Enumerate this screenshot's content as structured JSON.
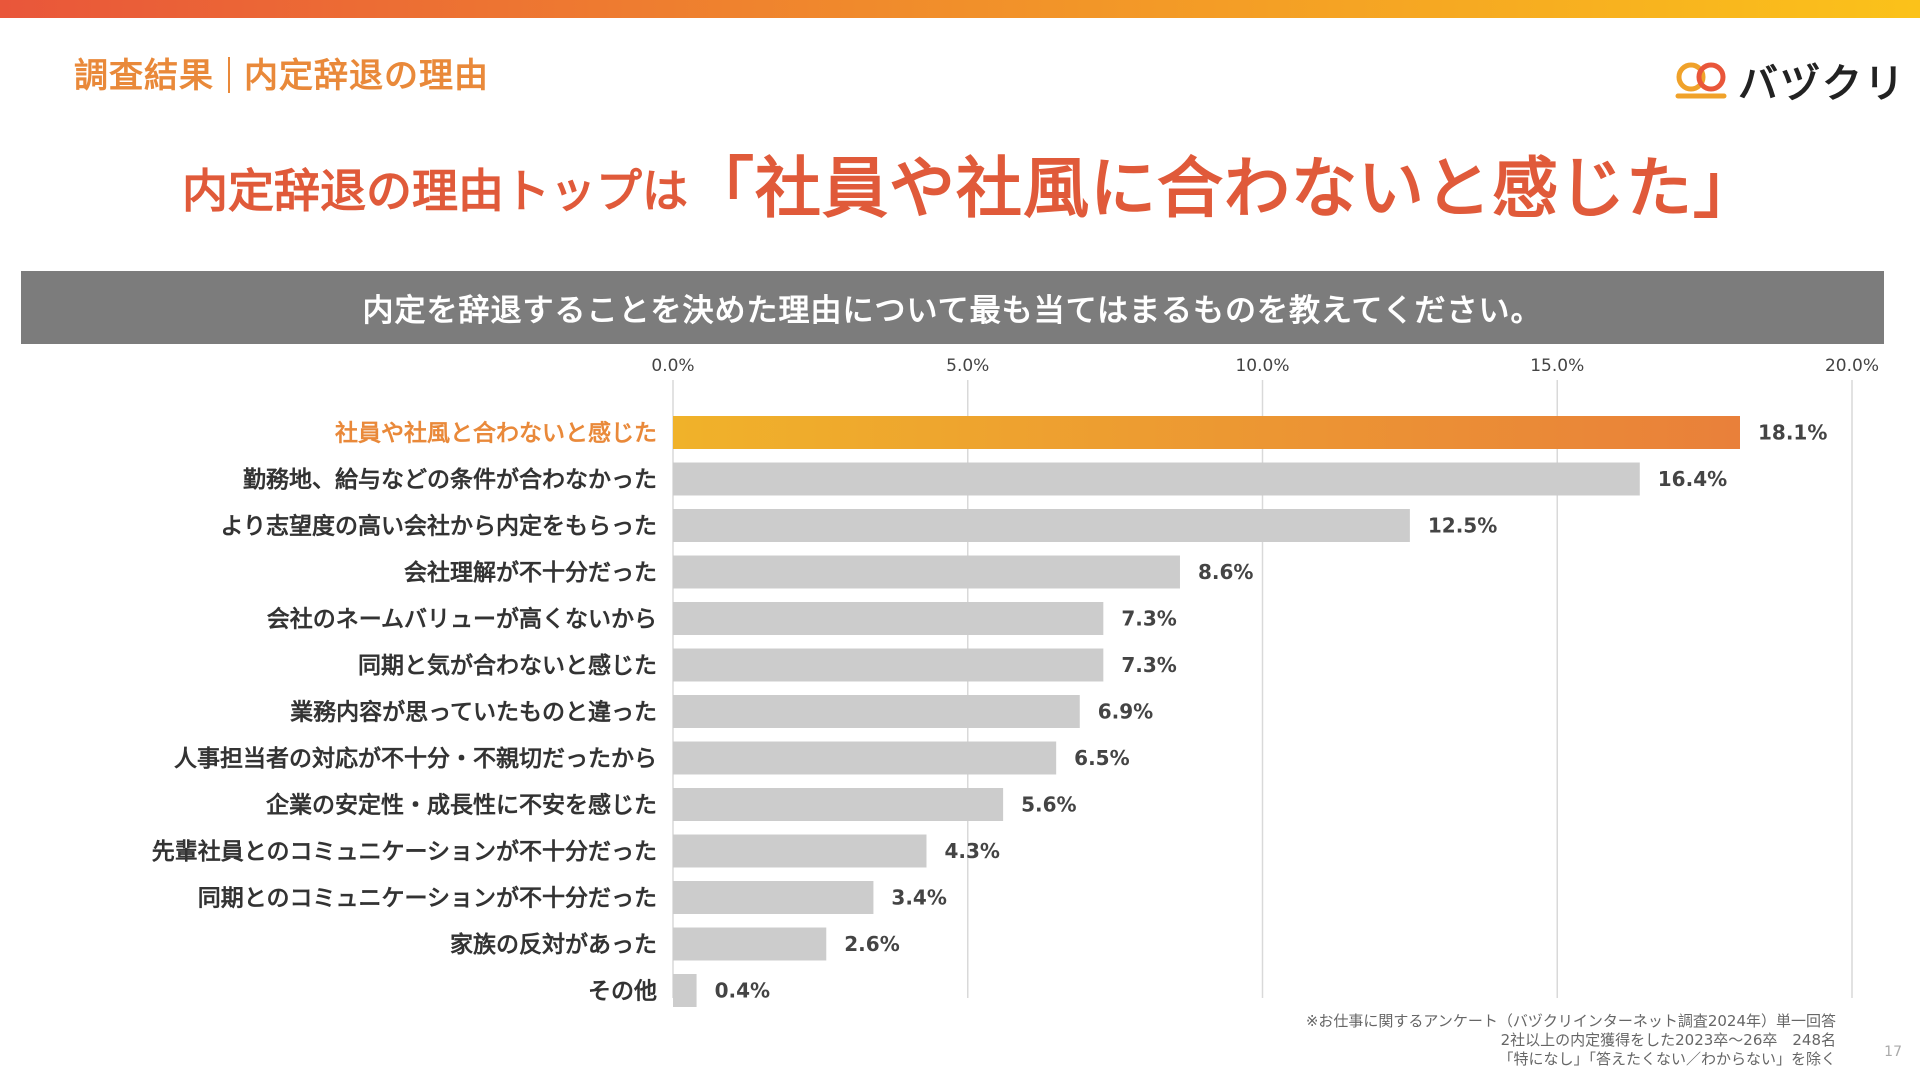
{
  "header": {
    "section_left": "調査結果",
    "section_right": "内定辞退の理由",
    "logo_text": "バヅクリ",
    "logo_icon": "pretzel-logo-icon"
  },
  "headline": {
    "lead": "内定辞退の理由トップは",
    "highlight": "「社員や社風に合わないと感じた」"
  },
  "question": "内定を辞退することを決めた理由について最も当てはまるものを教えてください。",
  "colors": {
    "highlight_start": "#f0b22a",
    "highlight_end": "#e9803a",
    "highlight_label": "#e9893a",
    "bar_gray": "#cccccc",
    "grid": "#d9d9d9",
    "label_text": "#333333"
  },
  "chart_data": {
    "type": "bar",
    "orientation": "horizontal",
    "categories": [
      "社員や社風と合わないと感じた",
      "勤務地、給与などの条件が合わなかった",
      "より志望度の高い会社から内定をもらった",
      "会社理解が不十分だった",
      "会社のネームバリューが高くないから",
      "同期と気が合わないと感じた",
      "業務内容が思っていたものと違った",
      "人事担当者の対応が不十分・不親切だったから",
      "企業の安定性・成長性に不安を感じた",
      "先輩社員とのコミュニケーションが不十分だった",
      "同期とのコミュニケーションが不十分だった",
      "家族の反対があった",
      "その他"
    ],
    "values": [
      18.1,
      16.4,
      12.5,
      8.6,
      7.3,
      7.3,
      6.9,
      6.5,
      5.6,
      4.3,
      3.4,
      2.6,
      0.4
    ],
    "value_labels": [
      "18.1%",
      "16.4%",
      "12.5%",
      "8.6%",
      "7.3%",
      "7.3%",
      "6.9%",
      "6.5%",
      "5.6%",
      "4.3%",
      "3.4%",
      "2.6%",
      "0.4%"
    ],
    "xlim": [
      0,
      20
    ],
    "ticks": [
      0,
      5,
      10,
      15,
      20
    ],
    "tick_labels": [
      "0.0%",
      "5.0%",
      "10.0%",
      "15.0%",
      "20.0%"
    ],
    "highlight_index": 0,
    "title": "",
    "xlabel": "",
    "ylabel": "",
    "grid": true
  },
  "footnote": {
    "line1": "※お仕事に関するアンケート（バヅクリインターネット調査2024年）単一回答",
    "line2": "2社以上の内定獲得をした2023卒〜26卒　248名",
    "line3": "「特になし」「答えたくない／わからない」を除く"
  },
  "page_number": "17"
}
